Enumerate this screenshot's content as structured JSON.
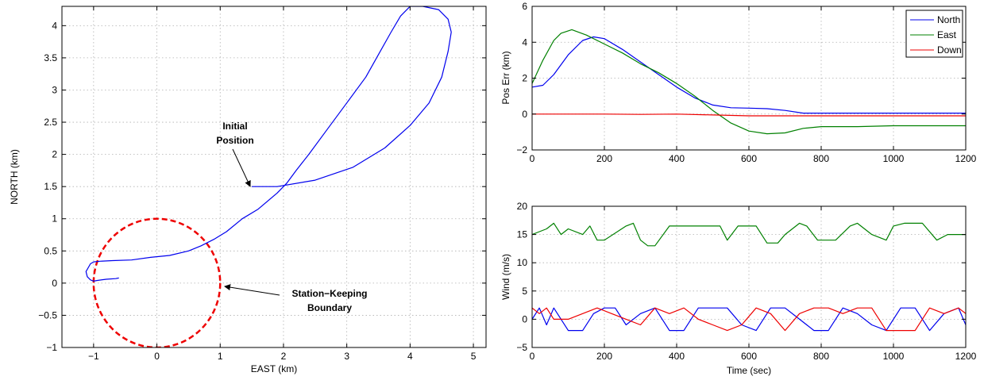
{
  "chart_data": [
    {
      "type": "line",
      "xlabel": "EAST (km)",
      "ylabel": "NORTH (km)",
      "xlim": [
        -1.5,
        5.2
      ],
      "ylim": [
        -1,
        4.3
      ],
      "xticks": [
        -1,
        0,
        1,
        2,
        3,
        4,
        5
      ],
      "xtick_labels": [
        "−1",
        "0",
        "1",
        "2",
        "3",
        "4",
        "5"
      ],
      "yticks": [
        -1,
        -0.5,
        0,
        0.5,
        1,
        1.5,
        2,
        2.5,
        3,
        3.5,
        4
      ],
      "ytick_labels": [
        "−1",
        "−0.5",
        "0",
        "0.5",
        "1",
        "1.5",
        "2",
        "2.5",
        "3",
        "3.5",
        "4"
      ],
      "grid": true,
      "boundary": {
        "center": [
          0,
          0
        ],
        "radius": 1,
        "color": "#ee0000",
        "style": "dashed"
      },
      "series": [
        {
          "color": "#0000ee",
          "x": [
            1.5,
            1.9,
            2.5,
            3.1,
            3.6,
            4.0,
            4.3,
            4.5,
            4.6,
            4.65,
            4.6,
            4.45,
            4.2,
            4.0,
            3.85,
            3.7,
            3.5,
            3.3,
            3.0,
            2.7,
            2.4,
            2.2,
            2.05,
            1.9,
            1.6,
            1.35,
            1.1,
            0.9,
            0.7,
            0.5,
            0.2,
            -0.1,
            -0.4,
            -0.7,
            -0.9,
            -1.0,
            -1.05,
            -1.12,
            -1.1,
            -1.05,
            -1.0,
            -0.95,
            -0.8,
            -0.65,
            -0.6
          ],
          "y": [
            1.5,
            1.5,
            1.6,
            1.8,
            2.1,
            2.45,
            2.8,
            3.2,
            3.6,
            3.9,
            4.1,
            4.25,
            4.3,
            4.3,
            4.15,
            3.9,
            3.55,
            3.2,
            2.8,
            2.4,
            2.0,
            1.75,
            1.55,
            1.4,
            1.15,
            1.0,
            0.8,
            0.68,
            0.58,
            0.5,
            0.43,
            0.4,
            0.36,
            0.35,
            0.34,
            0.33,
            0.3,
            0.18,
            0.1,
            0.05,
            0.03,
            0.04,
            0.06,
            0.07,
            0.08
          ]
        }
      ],
      "annotations": [
        {
          "text_lines": [
            "Initial",
            "Position"
          ],
          "target": [
            1.5,
            1.5
          ]
        },
        {
          "text_lines": [
            "Station−Keeping",
            "Boundary"
          ],
          "target": [
            1.0,
            0.0
          ]
        }
      ]
    },
    {
      "type": "line",
      "xlabel": "",
      "ylabel": "Pos Err (km)",
      "xlim": [
        0,
        1200
      ],
      "ylim": [
        -2,
        6
      ],
      "xticks": [
        0,
        200,
        400,
        600,
        800,
        1000,
        1200
      ],
      "xtick_labels": [
        "0",
        "200",
        "400",
        "600",
        "800",
        "1000",
        "1200"
      ],
      "yticks": [
        -2,
        0,
        2,
        4,
        6
      ],
      "ytick_labels": [
        "−2",
        "0",
        "2",
        "4",
        "6"
      ],
      "grid": true,
      "legend": "top-right",
      "series": [
        {
          "name": "North",
          "color": "#0000ee",
          "x": [
            0,
            30,
            60,
            100,
            140,
            170,
            200,
            250,
            300,
            350,
            400,
            450,
            500,
            550,
            600,
            650,
            700,
            750,
            800,
            900,
            1000,
            1100,
            1200
          ],
          "y": [
            1.5,
            1.6,
            2.2,
            3.3,
            4.1,
            4.3,
            4.2,
            3.6,
            2.9,
            2.2,
            1.5,
            0.9,
            0.5,
            0.35,
            0.33,
            0.3,
            0.2,
            0.05,
            0.05,
            0.05,
            0.05,
            0.05,
            0.05
          ]
        },
        {
          "name": "East",
          "color": "#008000",
          "x": [
            0,
            30,
            60,
            80,
            110,
            150,
            200,
            250,
            300,
            350,
            400,
            450,
            500,
            550,
            600,
            650,
            700,
            750,
            800,
            900,
            1000,
            1100,
            1200
          ],
          "y": [
            1.7,
            3.0,
            4.1,
            4.5,
            4.7,
            4.4,
            3.9,
            3.4,
            2.8,
            2.3,
            1.7,
            1.0,
            0.2,
            -0.5,
            -0.95,
            -1.1,
            -1.05,
            -0.8,
            -0.7,
            -0.7,
            -0.65,
            -0.65,
            -0.65
          ]
        },
        {
          "name": "Down",
          "color": "#ee0000",
          "x": [
            0,
            100,
            200,
            300,
            400,
            500,
            600,
            700,
            800,
            900,
            1000,
            1100,
            1200
          ],
          "y": [
            0.0,
            0.0,
            0.0,
            -0.02,
            0.0,
            -0.05,
            -0.1,
            -0.1,
            -0.1,
            -0.1,
            -0.1,
            -0.1,
            -0.1
          ]
        }
      ]
    },
    {
      "type": "line",
      "xlabel": "Time (sec)",
      "ylabel": "Wind (m/s)",
      "xlim": [
        0,
        1200
      ],
      "ylim": [
        -5,
        20
      ],
      "xticks": [
        0,
        200,
        400,
        600,
        800,
        1000,
        1200
      ],
      "xtick_labels": [
        "0",
        "200",
        "400",
        "600",
        "800",
        "1000",
        "1200"
      ],
      "yticks": [
        -5,
        0,
        5,
        10,
        15,
        20
      ],
      "ytick_labels": [
        "−5",
        "0",
        "5",
        "10",
        "15",
        "20"
      ],
      "grid": true,
      "series": [
        {
          "color": "#008000",
          "x": [
            0,
            40,
            60,
            80,
            100,
            140,
            160,
            180,
            200,
            260,
            280,
            300,
            320,
            340,
            380,
            420,
            460,
            520,
            540,
            570,
            620,
            650,
            680,
            700,
            740,
            760,
            790,
            840,
            880,
            900,
            940,
            980,
            1000,
            1030,
            1080,
            1120,
            1150,
            1200
          ],
          "y": [
            15,
            16,
            17,
            15,
            16,
            15,
            16.5,
            14,
            14,
            16.5,
            17,
            14,
            13,
            13,
            16.5,
            16.5,
            16.5,
            16.5,
            14,
            16.5,
            16.5,
            13.5,
            13.5,
            15,
            17,
            16.5,
            14,
            14,
            16.5,
            17,
            15,
            14,
            16.5,
            17,
            17,
            14,
            15,
            15
          ]
        },
        {
          "color": "#0000ee",
          "x": [
            0,
            20,
            40,
            60,
            100,
            140,
            170,
            200,
            230,
            260,
            300,
            340,
            380,
            420,
            460,
            500,
            540,
            580,
            620,
            660,
            700,
            740,
            780,
            820,
            860,
            900,
            940,
            980,
            1020,
            1060,
            1100,
            1140,
            1180,
            1200
          ],
          "y": [
            0,
            2,
            -1,
            2,
            -2,
            -2,
            1,
            2,
            2,
            -1,
            1,
            2,
            -2,
            -2,
            2,
            2,
            2,
            -1,
            -2,
            2,
            2,
            0,
            -2,
            -2,
            2,
            1,
            -1,
            -2,
            2,
            2,
            -2,
            1,
            2,
            -1
          ]
        },
        {
          "color": "#ee0000",
          "x": [
            0,
            20,
            40,
            60,
            100,
            140,
            180,
            220,
            260,
            300,
            340,
            380,
            420,
            460,
            500,
            540,
            580,
            620,
            660,
            700,
            740,
            780,
            820,
            860,
            900,
            940,
            980,
            1020,
            1060,
            1100,
            1140,
            1180,
            1200
          ],
          "y": [
            2,
            1,
            2,
            0,
            0,
            1,
            2,
            1,
            0,
            -1,
            2,
            1,
            2,
            0,
            -1,
            -2,
            -1,
            2,
            1,
            -2,
            1,
            2,
            2,
            1,
            2,
            2,
            -2,
            -2,
            -2,
            2,
            1,
            2,
            1
          ]
        }
      ]
    }
  ]
}
